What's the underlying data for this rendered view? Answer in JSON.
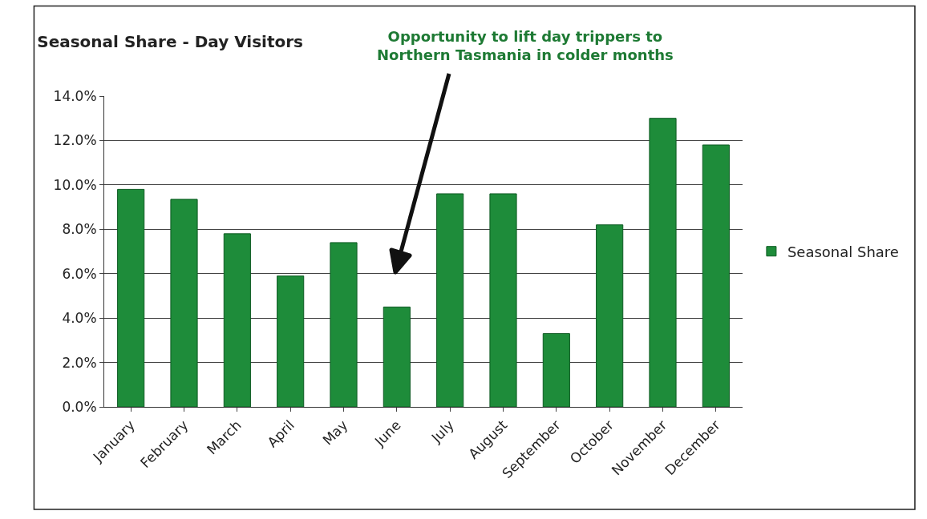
{
  "chart_data": {
    "type": "bar",
    "title": "Seasonal Share - Day Visitors",
    "categories": [
      "January",
      "February",
      "March",
      "April",
      "May",
      "June",
      "July",
      "August",
      "September",
      "October",
      "November",
      "December"
    ],
    "series": [
      {
        "name": "Seasonal Share",
        "color": "#1e8c3a",
        "values": [
          9.8,
          9.35,
          7.8,
          5.9,
          7.4,
          4.5,
          9.6,
          9.6,
          3.3,
          8.2,
          13.0,
          11.8
        ]
      }
    ],
    "ylim": [
      0,
      14
    ],
    "yticks": [
      {
        "value": 0,
        "label": "0.0%"
      },
      {
        "value": 2,
        "label": "2.0%"
      },
      {
        "value": 4,
        "label": "4.0%"
      },
      {
        "value": 6,
        "label": "6.0%"
      },
      {
        "value": 8,
        "label": "8.0%"
      },
      {
        "value": 10,
        "label": "10.0%"
      },
      {
        "value": 12,
        "label": "12.0%"
      },
      {
        "value": 14,
        "label": "14.0%"
      }
    ],
    "grid": "y",
    "legend": "right",
    "annotations": [
      "Opportunity to lift day trippers to\nNorthern Tasmania in colder months"
    ]
  }
}
